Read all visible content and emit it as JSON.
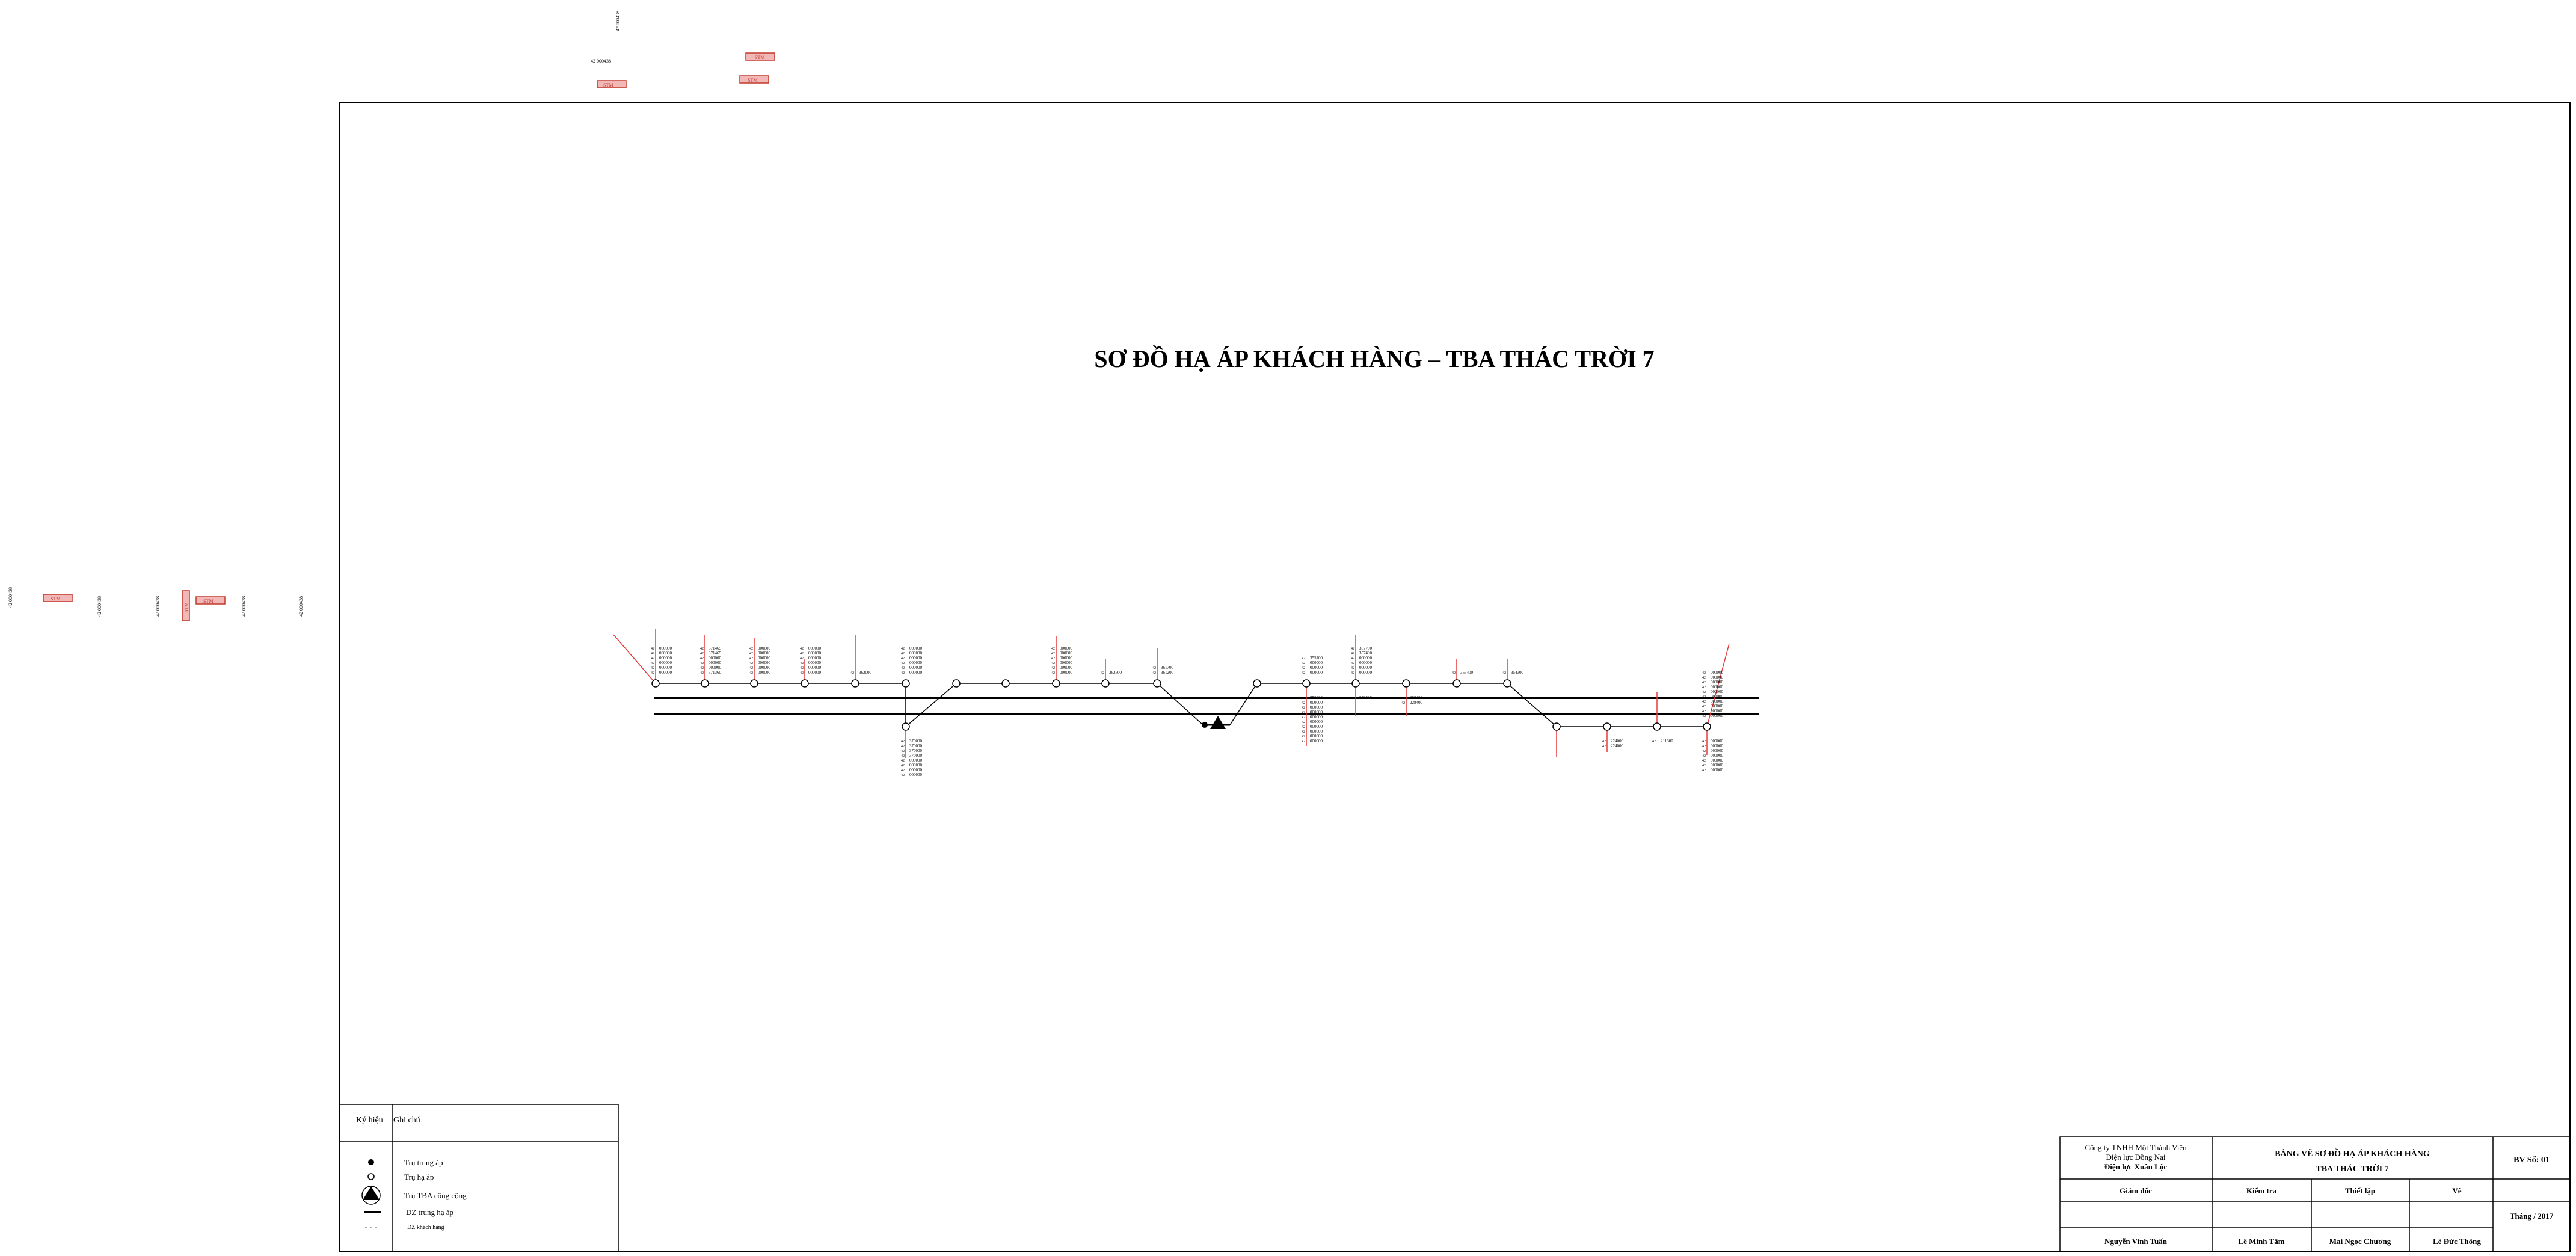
{
  "title": "SƠ ĐỒ HẠ ÁP KHÁCH HÀNG – TBA THÁC TRỜI 7",
  "outside_labels": {
    "top_vertical": "42 000438",
    "top_code": "42 000438",
    "top_tags": [
      "STM",
      "STM",
      "STM"
    ],
    "left_vertical": [
      "42 000438",
      "42 000438",
      "42 000438",
      "42 000438",
      "42 000438"
    ],
    "left_tags": [
      "STM",
      "STM",
      "STM"
    ]
  },
  "pole_labels": {
    "top": [
      {
        "pole": "p1",
        "lines": [
          "000000",
          "000000",
          "000000",
          "000000",
          "000000",
          "000000"
        ]
      },
      {
        "pole": "p2",
        "lines": [
          "371465",
          "371465",
          "000000",
          "000000",
          "000000",
          "371360"
        ]
      },
      {
        "pole": "p3",
        "lines": [
          "000000",
          "000000",
          "000000",
          "000000",
          "000000",
          "000000"
        ]
      },
      {
        "pole": "p4",
        "lines": [
          "000000",
          "000000",
          "000000",
          "000000",
          "000000",
          "000000"
        ]
      },
      {
        "pole": "p5",
        "lines": [
          "362000"
        ]
      },
      {
        "pole": "p6",
        "lines": [
          "000000",
          "000000",
          "000000",
          "000000",
          "000000",
          "000000"
        ]
      },
      {
        "pole": "p10",
        "lines": [
          "000000",
          "000000",
          "000000",
          "000000",
          "000000",
          "000000"
        ]
      },
      {
        "pole": "p11",
        "lines": [
          "362500"
        ]
      },
      {
        "pole": "p12",
        "lines": [
          "361700",
          "361200"
        ]
      },
      {
        "pole": "p14",
        "lines": [
          "355700",
          "000000",
          "000000",
          "000000"
        ]
      },
      {
        "pole": "p15",
        "lines": [
          "357700",
          "357400",
          "000000",
          "000000",
          "000000",
          "000000"
        ]
      },
      {
        "pole": "p17",
        "lines": [
          "355400"
        ]
      },
      {
        "pole": "p18",
        "lines": [
          "354300"
        ]
      },
      {
        "pole": "p22",
        "lines": [
          "000000",
          "000000",
          "000000",
          "000000",
          "000000",
          "000000",
          "000000",
          "000000",
          "000000",
          "000000"
        ]
      }
    ],
    "bottom": [
      {
        "pole": "p7",
        "lines": [
          "370000",
          "370000",
          "370000",
          "370000",
          "000000",
          "000000",
          "000000",
          "000000"
        ]
      },
      {
        "pole": "p14",
        "lines": [
          "370000",
          "000000",
          "000000",
          "000000",
          "000000",
          "000000",
          "000000",
          "000000",
          "000000",
          "000000"
        ]
      },
      {
        "pole": "p15",
        "lines": [
          "278500"
        ]
      },
      {
        "pole": "p16",
        "lines": [
          "228400",
          "228400"
        ]
      },
      {
        "pole": "p20",
        "lines": [
          "224000",
          "224000"
        ]
      },
      {
        "pole": "p21",
        "lines": [
          "211300"
        ]
      },
      {
        "pole": "p22",
        "lines": [
          "000000",
          "000000",
          "000000",
          "000000",
          "000000",
          "000000",
          "000000"
        ]
      }
    ],
    "prefix": "42"
  },
  "legend": {
    "header_symbol": "Ký hiệu",
    "header_note": "Ghi chú",
    "items": [
      {
        "icon": "filled-dot-icon",
        "label": "Trụ trung áp"
      },
      {
        "icon": "hollow-circle-icon",
        "label": "Trụ hạ áp"
      },
      {
        "icon": "triangle-icon",
        "label": "Trụ TBA công cộng"
      },
      {
        "icon": "solid-line-icon",
        "label": "DZ trung hạ áp"
      },
      {
        "icon": "dashed-line-icon",
        "label": "DZ khách hàng"
      }
    ]
  },
  "title_block": {
    "company_line1": "Công ty TNHH Một Thành Viên",
    "company_line2": "Điện lực Đồng Nai",
    "company_line3": "Điện lực Xuân Lộc",
    "drawing_title_line1": "BẢNG VẼ SƠ ĐỒ HẠ ÁP KHÁCH HÀNG",
    "drawing_title_line2": "TBA THÁC TRỜI 7",
    "sheet_no": "BV Số: 01",
    "roles": [
      "Giám đốc",
      "Kiểm tra",
      "Thiết lập",
      "Vẽ"
    ],
    "names": [
      "Nguyễn Vinh Tuấn",
      "Lê Minh Tâm",
      "Mai Ngọc Chương",
      "Lê Đức Thông"
    ],
    "date": "Tháng / 2017"
  },
  "colors": {
    "line": "#000000",
    "drop": "#e23a3a",
    "tag_fill": "#f2b8b8",
    "tag_border": "#c0392b"
  }
}
